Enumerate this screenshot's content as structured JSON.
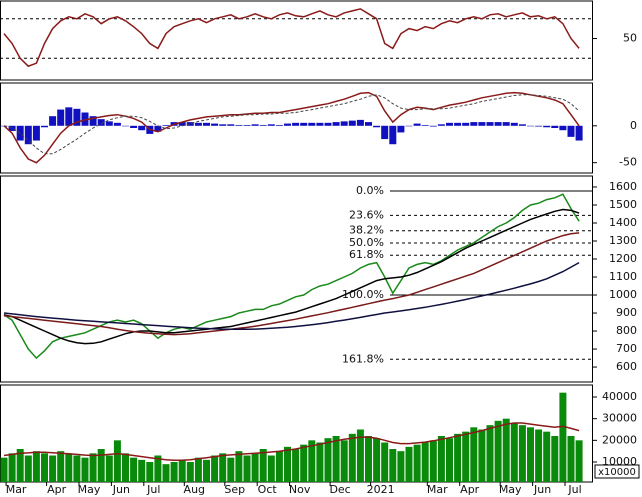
{
  "chart_data": [
    {
      "type": "line",
      "ylim": [
        8,
        88
      ],
      "yticks": [
        50
      ],
      "levels": [
        30,
        70
      ],
      "series": [
        {
          "color": "#8b1a1a",
          "values": [
            55,
            45,
            30,
            22,
            25,
            45,
            60,
            68,
            72,
            70,
            75,
            72,
            65,
            70,
            72,
            68,
            62,
            55,
            45,
            40,
            55,
            62,
            65,
            68,
            70,
            66,
            70,
            72,
            74,
            70,
            72,
            75,
            72,
            70,
            74,
            76,
            73,
            72,
            75,
            78,
            74,
            72,
            76,
            78,
            80,
            75,
            70,
            45,
            40,
            55,
            60,
            58,
            62,
            60,
            65,
            68,
            66,
            70,
            72,
            70,
            74,
            75,
            72,
            74,
            76,
            72,
            73,
            70,
            72,
            65,
            50,
            40
          ]
        }
      ]
    },
    {
      "type": "line",
      "ylim": [
        -64,
        58
      ],
      "yticks": [
        -50,
        0
      ],
      "series": [
        {
          "kind": "bar",
          "color": "#1010c0",
          "values": [
            0,
            -7,
            -20,
            -25,
            -20,
            -2,
            13,
            22,
            25,
            23,
            18,
            13,
            9,
            6,
            4,
            0,
            -3,
            -6,
            -11,
            -8,
            1,
            5,
            5,
            5,
            4,
            4,
            3,
            2,
            2,
            1,
            1,
            2,
            1,
            2,
            1,
            3,
            4,
            4,
            4,
            4,
            4,
            5,
            6,
            7,
            8,
            5,
            -2,
            -18,
            -25,
            -9,
            0,
            3,
            1,
            -1,
            2,
            4,
            4,
            4,
            5,
            5,
            5,
            5,
            5,
            4,
            2,
            0,
            -1,
            -2,
            -3,
            -6,
            -15,
            -20
          ]
        },
        {
          "color": "#8b1a1a",
          "values": [
            0,
            -10,
            -30,
            -45,
            -50,
            -40,
            -25,
            -10,
            0,
            5,
            8,
            10,
            12,
            14,
            15,
            13,
            10,
            5,
            -5,
            -8,
            -3,
            2,
            5,
            8,
            10,
            12,
            13,
            14,
            15,
            15,
            16,
            17,
            17,
            18,
            18,
            20,
            22,
            24,
            26,
            28,
            30,
            33,
            36,
            40,
            44,
            45,
            40,
            20,
            5,
            15,
            22,
            25,
            24,
            22,
            25,
            28,
            30,
            32,
            35,
            38,
            40,
            42,
            44,
            45,
            44,
            42,
            40,
            38,
            35,
            30,
            15,
            0
          ]
        },
        {
          "color": "#444444",
          "dashed": true,
          "values": [
            0,
            -3,
            -10,
            -20,
            -30,
            -38,
            -38,
            -32,
            -25,
            -18,
            -10,
            -3,
            3,
            8,
            11,
            13,
            13,
            11,
            6,
            0,
            -4,
            -3,
            0,
            3,
            6,
            8,
            10,
            12,
            13,
            14,
            15,
            15,
            16,
            16,
            17,
            17,
            18,
            20,
            22,
            24,
            26,
            28,
            30,
            33,
            36,
            40,
            42,
            38,
            30,
            24,
            22,
            22,
            23,
            23,
            23,
            24,
            26,
            28,
            30,
            33,
            35,
            37,
            39,
            41,
            42,
            42,
            41,
            40,
            38,
            36,
            30,
            20
          ]
        }
      ]
    },
    {
      "type": "line",
      "ylim": [
        517,
        1661
      ],
      "yticks": [
        600,
        700,
        800,
        900,
        1000,
        1100,
        1200,
        1300,
        1400,
        1500,
        1600
      ],
      "fib_levels": [
        {
          "value": 1578,
          "label": "0.0%"
        },
        {
          "value": 1442,
          "label": "23.6%"
        },
        {
          "value": 1357,
          "label": "38.2%"
        },
        {
          "value": 1289,
          "label": "50.0%"
        },
        {
          "value": 1221,
          "label": "61.8%"
        },
        {
          "value": 1000,
          "label": "100.0%"
        },
        {
          "value": 643,
          "label": "161.8%"
        }
      ],
      "series": [
        {
          "color": "#1a8a1a",
          "values": [
            890,
            860,
            780,
            700,
            650,
            690,
            740,
            760,
            770,
            780,
            790,
            810,
            830,
            850,
            860,
            850,
            860,
            840,
            800,
            760,
            790,
            810,
            820,
            810,
            830,
            850,
            860,
            870,
            880,
            900,
            910,
            920,
            920,
            940,
            950,
            970,
            990,
            1000,
            1030,
            1050,
            1060,
            1080,
            1100,
            1120,
            1150,
            1170,
            1180,
            1100,
            1010,
            1080,
            1150,
            1170,
            1180,
            1170,
            1190,
            1220,
            1250,
            1270,
            1290,
            1320,
            1350,
            1380,
            1400,
            1430,
            1470,
            1500,
            1510,
            1530,
            1540,
            1560,
            1480,
            1410
          ]
        },
        {
          "color": "#000000",
          "values": [
            890,
            880,
            860,
            840,
            820,
            800,
            780,
            760,
            745,
            735,
            730,
            732,
            740,
            755,
            770,
            785,
            795,
            800,
            800,
            795,
            790,
            790,
            795,
            800,
            805,
            810,
            815,
            820,
            825,
            835,
            845,
            855,
            865,
            875,
            885,
            895,
            905,
            920,
            935,
            950,
            965,
            980,
            1000,
            1020,
            1040,
            1060,
            1080,
            1090,
            1095,
            1100,
            1110,
            1125,
            1145,
            1165,
            1185,
            1210,
            1235,
            1260,
            1280,
            1300,
            1320,
            1340,
            1360,
            1380,
            1400,
            1420,
            1435,
            1450,
            1465,
            1475,
            1470,
            1455
          ]
        },
        {
          "color": "#7a1a1a",
          "values": [
            885,
            880,
            875,
            870,
            865,
            860,
            855,
            850,
            845,
            840,
            835,
            830,
            825,
            818,
            810,
            803,
            797,
            792,
            788,
            785,
            782,
            780,
            782,
            785,
            790,
            795,
            800,
            805,
            810,
            815,
            820,
            827,
            834,
            842,
            850,
            858,
            866,
            875,
            884,
            893,
            902,
            912,
            922,
            932,
            942,
            952,
            962,
            972,
            980,
            990,
            1000,
            1015,
            1030,
            1045,
            1060,
            1075,
            1090,
            1105,
            1120,
            1140,
            1160,
            1180,
            1200,
            1220,
            1240,
            1260,
            1280,
            1300,
            1315,
            1330,
            1340,
            1345
          ]
        },
        {
          "color": "#101040",
          "values": [
            900,
            895,
            890,
            885,
            880,
            876,
            872,
            868,
            864,
            860,
            857,
            854,
            851,
            848,
            845,
            842,
            839,
            836,
            833,
            830,
            827,
            824,
            821,
            818,
            816,
            814,
            812,
            811,
            810,
            810,
            810,
            811,
            813,
            815,
            818,
            821,
            825,
            830,
            835,
            841,
            847,
            854,
            861,
            868,
            876,
            884,
            892,
            900,
            906,
            912,
            918,
            925,
            932,
            940,
            948,
            957,
            966,
            975,
            985,
            995,
            1005,
            1016,
            1027,
            1038,
            1050,
            1062,
            1075,
            1090,
            1110,
            1130,
            1155,
            1180
          ]
        }
      ]
    },
    {
      "type": "bar",
      "ylim": [
        770,
        45540
      ],
      "yticks": [
        10000,
        20000,
        30000,
        40000
      ],
      "unit_label": "x10000",
      "categories": [
        null,
        "Mar",
        null,
        null,
        null,
        null,
        "Apr",
        null,
        null,
        null,
        "May",
        null,
        null,
        null,
        "Jun",
        null,
        null,
        null,
        "Jul",
        null,
        null,
        null,
        null,
        "Aug",
        null,
        null,
        null,
        null,
        "Sep",
        null,
        null,
        null,
        "Oct",
        null,
        null,
        null,
        "Nov",
        null,
        null,
        null,
        null,
        "Dec",
        null,
        null,
        null,
        null,
        "2021",
        null,
        null,
        null,
        null,
        null,
        null,
        "Mar",
        null,
        null,
        null,
        "Apr",
        null,
        null,
        null,
        null,
        "May",
        null,
        null,
        null,
        "Jun",
        null,
        null,
        null,
        "Jul",
        null
      ],
      "series": [
        {
          "color": "#0a8a0a",
          "values": [
            12000,
            14000,
            16000,
            13000,
            15000,
            14000,
            13000,
            15000,
            14000,
            13000,
            12000,
            14000,
            16000,
            13000,
            20000,
            14000,
            12000,
            11000,
            10000,
            13000,
            9000,
            10000,
            11000,
            10000,
            12000,
            11000,
            13000,
            14000,
            12000,
            15000,
            13000,
            14000,
            16000,
            13000,
            15000,
            17000,
            16000,
            18000,
            20000,
            19000,
            21000,
            22000,
            20000,
            23000,
            25000,
            22000,
            21000,
            19000,
            16000,
            15000,
            17000,
            18000,
            19000,
            20000,
            22000,
            21000,
            23000,
            24000,
            26000,
            25000,
            27000,
            29000,
            30000,
            28000,
            27000,
            26000,
            25000,
            24000,
            22000,
            42000,
            22000,
            20000
          ]
        },
        {
          "kind": "line",
          "color": "#8b1a1a",
          "values": [
            13000,
            13500,
            14000,
            14200,
            14500,
            14500,
            14300,
            14000,
            13800,
            13500,
            13200,
            13000,
            13200,
            13500,
            13800,
            13500,
            13000,
            12500,
            12000,
            11500,
            11000,
            10800,
            10800,
            11000,
            11500,
            12000,
            12500,
            13000,
            13300,
            13500,
            13800,
            14000,
            14300,
            14600,
            15000,
            15500,
            16000,
            16800,
            17500,
            18200,
            19000,
            19800,
            20500,
            21000,
            21500,
            21500,
            21000,
            20000,
            19000,
            18500,
            18500,
            18800,
            19200,
            19800,
            20500,
            21200,
            22000,
            22800,
            23600,
            24500,
            25500,
            26500,
            27500,
            28000,
            28000,
            27500,
            27000,
            26500,
            26000,
            26500,
            25500,
            24500
          ]
        }
      ]
    }
  ]
}
